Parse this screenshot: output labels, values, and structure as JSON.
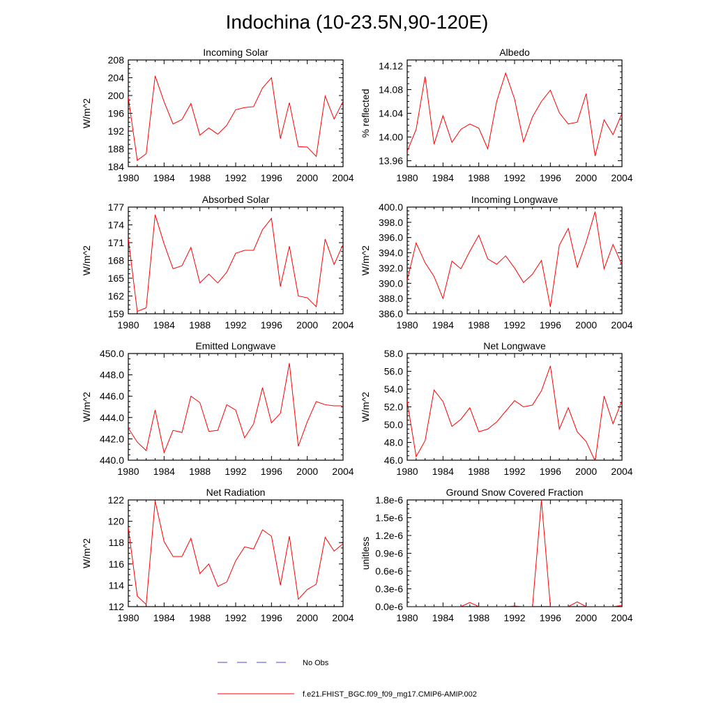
{
  "title": "Indochina (10-23.5N,90-120E)",
  "legend": {
    "obs_label": "No Obs",
    "obs_color": "#4a4ad0",
    "model_label": "f.e21.FHIST_BGC.f09_f09_mg17.CMIP6-AMIP.002",
    "model_color": "#ff0000"
  },
  "chart_data": [
    {
      "type": "line",
      "title": "Incoming Solar",
      "ylabel": "W/m^2",
      "xlim": [
        1980,
        2004
      ],
      "ylim": [
        184,
        208
      ],
      "xticks": [
        1980,
        1984,
        1988,
        1992,
        1996,
        2000,
        2004
      ],
      "xtick_labels": [
        "1980",
        "1984",
        "1988",
        "1992",
        "1996",
        "2000",
        "2004"
      ],
      "yticks": [
        184,
        188,
        192,
        196,
        200,
        204,
        208
      ],
      "ytick_labels": [
        "184",
        "188",
        "192",
        "196",
        "200",
        "204",
        "208"
      ],
      "x": [
        1980,
        1981,
        1982,
        1983,
        1984,
        1985,
        1986,
        1987,
        1988,
        1989,
        1990,
        1991,
        1992,
        1993,
        1994,
        1995,
        1996,
        1997,
        1998,
        1999,
        2000,
        2001,
        2002,
        2003,
        2004
      ],
      "values": [
        199.6,
        185.4,
        186.9,
        204.4,
        198.6,
        193.6,
        194.6,
        198.2,
        191.1,
        192.7,
        191.3,
        193.3,
        196.8,
        197.3,
        197.5,
        201.7,
        204.0,
        190.3,
        198.4,
        188.5,
        188.4,
        186.3,
        199.9,
        194.7,
        198.7
      ]
    },
    {
      "type": "line",
      "title": "Albedo",
      "ylabel": "% reflected",
      "xlim": [
        1980,
        2004
      ],
      "ylim": [
        13.95,
        14.13
      ],
      "xticks": [
        1980,
        1984,
        1988,
        1992,
        1996,
        2000,
        2004
      ],
      "xtick_labels": [
        "1980",
        "1984",
        "1988",
        "1992",
        "1996",
        "2000",
        "2004"
      ],
      "yticks": [
        13.96,
        14.0,
        14.04,
        14.08,
        14.12
      ],
      "ytick_labels": [
        "13.96",
        "14.00",
        "14.04",
        "14.08",
        "14.12"
      ],
      "x": [
        1980,
        1981,
        1982,
        1983,
        1984,
        1985,
        1986,
        1987,
        1988,
        1989,
        1990,
        1991,
        1992,
        1993,
        1994,
        1995,
        1996,
        1997,
        1998,
        1999,
        2000,
        2004,
        2001,
        2002,
        2003
      ],
      "values": [
        13.976,
        14.013,
        14.102,
        13.988,
        14.036,
        13.991,
        14.013,
        14.022,
        14.015,
        13.98,
        14.06,
        14.108,
        14.064,
        13.992,
        14.034,
        14.06,
        14.079,
        14.041,
        14.022,
        14.025,
        14.073,
        14.04,
        13.968,
        14.029,
        14.004
      ]
    },
    {
      "type": "line",
      "title": "Absorbed Solar",
      "ylabel": "W/m^2",
      "xlim": [
        1980,
        2004
      ],
      "ylim": [
        159,
        177
      ],
      "xticks": [
        1980,
        1984,
        1988,
        1992,
        1996,
        2000,
        2004
      ],
      "xtick_labels": [
        "1980",
        "1984",
        "1988",
        "1992",
        "1996",
        "2000",
        "2004"
      ],
      "yticks": [
        159,
        162,
        165,
        168,
        171,
        174,
        177
      ],
      "ytick_labels": [
        "159",
        "162",
        "165",
        "168",
        "171",
        "174",
        "177"
      ],
      "x": [
        1980,
        1981,
        1982,
        1983,
        1984,
        1985,
        1986,
        1987,
        1988,
        1989,
        1990,
        1991,
        1992,
        1993,
        1994,
        1995,
        1996,
        1997,
        1998,
        1999,
        2000,
        2001,
        2002,
        2003,
        2004
      ],
      "values": [
        171.7,
        159.4,
        160.0,
        175.7,
        170.8,
        166.6,
        167.1,
        170.2,
        164.2,
        165.7,
        164.2,
        166.0,
        169.2,
        169.7,
        169.7,
        173.2,
        175.1,
        163.6,
        170.4,
        162.0,
        161.7,
        160.2,
        171.6,
        167.3,
        170.7
      ]
    },
    {
      "type": "line",
      "title": "Incoming Longwave",
      "ylabel": "W/m^2",
      "xlim": [
        1980,
        2004
      ],
      "ylim": [
        386,
        400
      ],
      "xticks": [
        1980,
        1984,
        1988,
        1992,
        1996,
        2000,
        2004
      ],
      "xtick_labels": [
        "1980",
        "1984",
        "1988",
        "1992",
        "1996",
        "2000",
        "2004"
      ],
      "yticks": [
        386,
        388,
        390,
        392,
        394,
        396,
        398,
        400
      ],
      "ytick_labels": [
        "386.0",
        "388.0",
        "390.0",
        "392.0",
        "394.0",
        "396.0",
        "398.0",
        "400.0"
      ],
      "x": [
        1980,
        1981,
        1982,
        1983,
        1984,
        1985,
        1986,
        1987,
        1988,
        1989,
        1990,
        1991,
        1992,
        1993,
        1994,
        1995,
        1996,
        1997,
        1998,
        1999,
        2000,
        2001,
        2002,
        2003,
        2004
      ],
      "values": [
        390.4,
        395.3,
        392.7,
        390.9,
        388.0,
        392.9,
        391.9,
        394.2,
        396.3,
        393.2,
        392.5,
        393.6,
        392.0,
        390.1,
        391.2,
        393.0,
        386.9,
        395.0,
        397.2,
        392.1,
        395.4,
        399.4,
        391.9,
        395.1,
        392.4
      ]
    },
    {
      "type": "line",
      "title": "Emitted Longwave",
      "ylabel": "W/m^2",
      "xlim": [
        1980,
        2004
      ],
      "ylim": [
        440,
        450
      ],
      "xticks": [
        1980,
        1984,
        1988,
        1992,
        1996,
        2000,
        2004
      ],
      "xtick_labels": [
        "1980",
        "1984",
        "1988",
        "1992",
        "1996",
        "2000",
        "2004"
      ],
      "yticks": [
        440,
        442,
        444,
        446,
        448,
        450
      ],
      "ytick_labels": [
        "440.0",
        "442.0",
        "444.0",
        "446.0",
        "448.0",
        "450.0"
      ],
      "x": [
        1980,
        1981,
        1982,
        1983,
        1984,
        1985,
        1986,
        1987,
        1988,
        1989,
        1990,
        1991,
        1992,
        1993,
        1994,
        1995,
        1996,
        1997,
        1998,
        1999,
        2000,
        2001,
        2002,
        2003,
        2004
      ],
      "values": [
        443.0,
        441.7,
        440.9,
        444.7,
        440.7,
        442.8,
        442.6,
        446.0,
        445.4,
        442.7,
        442.8,
        445.2,
        444.7,
        442.1,
        443.4,
        446.8,
        443.5,
        444.4,
        449.1,
        441.3,
        443.6,
        445.5,
        445.2,
        445.1,
        445.1
      ]
    },
    {
      "type": "line",
      "title": "Net Longwave",
      "ylabel": "W/m^2",
      "xlim": [
        1980,
        2004
      ],
      "ylim": [
        46,
        58
      ],
      "xticks": [
        1980,
        1984,
        1988,
        1992,
        1996,
        2000,
        2004
      ],
      "xtick_labels": [
        "1980",
        "1984",
        "1988",
        "1992",
        "1996",
        "2000",
        "2004"
      ],
      "yticks": [
        46,
        48,
        50,
        52,
        54,
        56,
        58
      ],
      "ytick_labels": [
        "46.0",
        "48.0",
        "50.0",
        "52.0",
        "54.0",
        "56.0",
        "58.0"
      ],
      "x": [
        1980,
        1981,
        1982,
        1983,
        1984,
        1985,
        1986,
        1987,
        1988,
        1989,
        1990,
        1991,
        1992,
        1993,
        1994,
        1995,
        1996,
        1997,
        1998,
        1999,
        2000,
        2001,
        2002,
        2003,
        2004
      ],
      "values": [
        52.6,
        46.4,
        48.2,
        53.9,
        52.6,
        49.8,
        50.6,
        51.9,
        49.2,
        49.5,
        50.3,
        51.5,
        52.7,
        52.0,
        52.2,
        53.8,
        56.6,
        49.5,
        51.9,
        49.2,
        48.1,
        45.9,
        53.2,
        50.1,
        52.7
      ]
    },
    {
      "type": "line",
      "title": "Net Radiation",
      "ylabel": "W/m^2",
      "xlim": [
        1980,
        2004
      ],
      "ylim": [
        112,
        122
      ],
      "xticks": [
        1980,
        1984,
        1988,
        1992,
        1996,
        2000,
        2004
      ],
      "xtick_labels": [
        "1980",
        "1984",
        "1988",
        "1992",
        "1996",
        "2000",
        "2004"
      ],
      "yticks": [
        112,
        114,
        116,
        118,
        120,
        122
      ],
      "ytick_labels": [
        "112",
        "114",
        "116",
        "118",
        "120",
        "122"
      ],
      "x": [
        1980,
        1981,
        1982,
        1983,
        1984,
        1985,
        1986,
        1987,
        1988,
        1989,
        1990,
        1991,
        1992,
        1993,
        1994,
        1995,
        1996,
        1997,
        1998,
        1999,
        2000,
        2001,
        2002,
        2003,
        2004
      ],
      "values": [
        119.4,
        113.0,
        112.2,
        121.9,
        118.1,
        116.7,
        116.7,
        118.4,
        115.1,
        116.0,
        113.9,
        114.3,
        116.3,
        117.6,
        117.4,
        119.2,
        118.6,
        114.0,
        118.6,
        112.7,
        113.6,
        114.1,
        118.5,
        117.2,
        117.9
      ]
    },
    {
      "type": "line",
      "title": "Ground Snow Covered Fraction",
      "ylabel": "unitless",
      "xlim": [
        1980,
        2004
      ],
      "ylim": [
        0,
        1.8e-06
      ],
      "xticks": [
        1980,
        1984,
        1988,
        1992,
        1996,
        2000,
        2004
      ],
      "xtick_labels": [
        "1980",
        "1984",
        "1988",
        "1992",
        "1996",
        "2000",
        "2004"
      ],
      "yticks": [
        0,
        3e-07,
        6e-07,
        9e-07,
        1.2e-06,
        1.5e-06,
        1.8e-06
      ],
      "ytick_labels": [
        "0.0e-6",
        "0.3e-6",
        "0.6e-6",
        "0.9e-6",
        "1.2e-6",
        "1.5e-6",
        "1.8e-6"
      ],
      "x": [
        1980,
        1981,
        1982,
        1983,
        1984,
        1985,
        1986,
        1987,
        1988,
        1989,
        1990,
        1991,
        1992,
        1993,
        1994,
        1995,
        1996,
        1997,
        1998,
        1999,
        2000,
        2001,
        2002,
        2003,
        2004
      ],
      "values": [
        0,
        0,
        0,
        0,
        0,
        0,
        0,
        7e-08,
        0,
        0,
        0,
        0,
        1e-08,
        0,
        0,
        1.8e-06,
        0,
        0,
        0,
        8e-08,
        0,
        0,
        0,
        0,
        2e-08
      ]
    }
  ]
}
